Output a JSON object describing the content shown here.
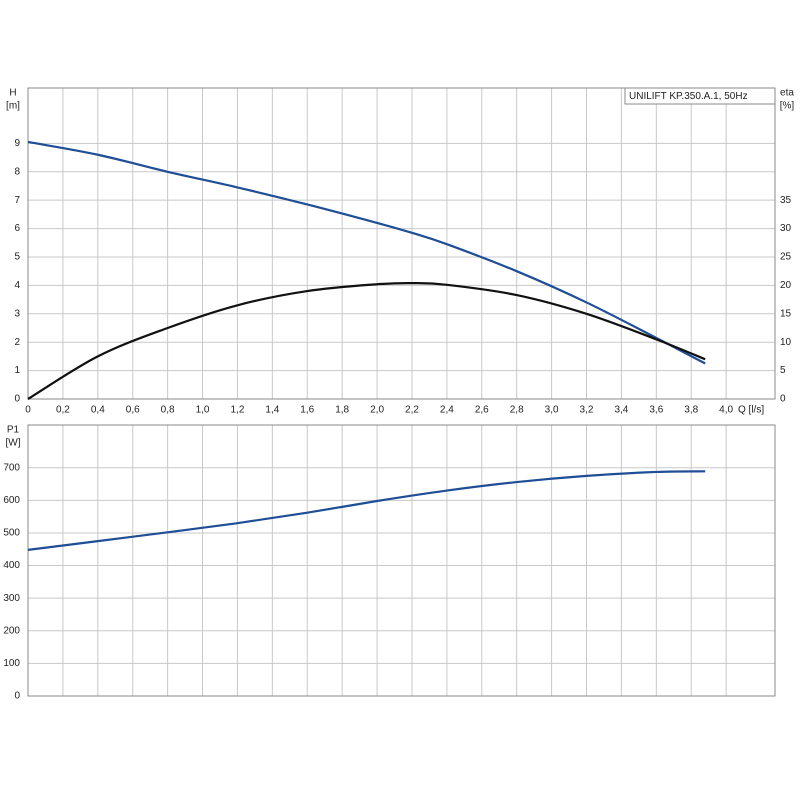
{
  "chart_data": [
    {
      "type": "line",
      "title": "UNILIFT KP.350.A.1, 50Hz",
      "ylabel": "H",
      "yunit": "[m]",
      "y2label": "eta",
      "y2unit": "[%]",
      "xlabel": "Q [l/s]",
      "x": [
        0,
        0.4,
        0.8,
        1.2,
        1.6,
        2.0,
        2.2,
        2.4,
        2.8,
        3.2,
        3.6,
        3.88
      ],
      "series": [
        {
          "name": "H",
          "color": "#1f4e96",
          "values": [
            9.05,
            8.6,
            8.0,
            7.45,
            6.85,
            6.2,
            5.85,
            5.45,
            4.5,
            3.4,
            2.15,
            1.25
          ]
        },
        {
          "name": "eta",
          "color": "#111111",
          "axis": "y2",
          "values": [
            0,
            7.5,
            12.5,
            16.5,
            19,
            20.2,
            20.4,
            20.1,
            18.3,
            15,
            10.5,
            7
          ]
        }
      ],
      "xlim": [
        0,
        4.28
      ],
      "xticks": [
        0,
        {
          "value": 0.2,
          "label": "0,2"
        },
        {
          "value": 0.4,
          "label": "0,4"
        },
        {
          "value": 0.6,
          "label": "0,6"
        },
        {
          "value": 0.8,
          "label": "0,8"
        },
        {
          "value": 1.0,
          "label": "1,0"
        },
        {
          "value": 1.2,
          "label": "1,2"
        },
        {
          "value": 1.4,
          "label": "1,4"
        },
        {
          "value": 1.6,
          "label": "1,6"
        },
        {
          "value": 1.8,
          "label": "1,8"
        },
        {
          "value": 2.0,
          "label": "2,0"
        },
        {
          "value": 2.2,
          "label": "2,2"
        },
        {
          "value": 2.4,
          "label": "2,4"
        },
        {
          "value": 2.6,
          "label": "2,6"
        },
        {
          "value": 2.8,
          "label": "2,8"
        },
        {
          "value": 3.0,
          "label": "3,0"
        },
        {
          "value": 3.2,
          "label": "3,2"
        },
        {
          "value": 3.4,
          "label": "3,4"
        },
        {
          "value": 3.6,
          "label": "3,6"
        },
        {
          "value": 3.8,
          "label": "3,8"
        },
        {
          "value": 4.0,
          "label": "4,0"
        }
      ],
      "ylim": [
        0,
        10.95
      ],
      "yticks": [
        0,
        1,
        2,
        3,
        4,
        5,
        6,
        7,
        8,
        9
      ],
      "y2lim": [
        0,
        54.75
      ],
      "y2ticks": [
        0,
        5,
        10,
        15,
        20,
        25,
        30,
        35
      ],
      "grid": true
    },
    {
      "type": "line",
      "ylabel": "P1",
      "yunit": "[W]",
      "x": [
        0,
        0.4,
        0.8,
        1.2,
        1.6,
        2.0,
        2.4,
        2.8,
        3.2,
        3.6,
        3.88
      ],
      "series": [
        {
          "name": "P1",
          "color": "#1f4e96",
          "values": [
            448,
            475,
            502,
            530,
            562,
            598,
            630,
            656,
            675,
            687,
            689
          ]
        }
      ],
      "xlim": [
        0,
        4.28
      ],
      "xticks": [
        0,
        0.2,
        0.4,
        0.6,
        0.8,
        1.0,
        1.2,
        1.4,
        1.6,
        1.8,
        2.0,
        2.2,
        2.4,
        2.6,
        2.8,
        3.0,
        3.2,
        3.4,
        3.6,
        3.8,
        4.0
      ],
      "ylim": [
        0,
        831
      ],
      "yticks": [
        0,
        100,
        200,
        300,
        400,
        500,
        600,
        700
      ],
      "grid": true
    }
  ]
}
